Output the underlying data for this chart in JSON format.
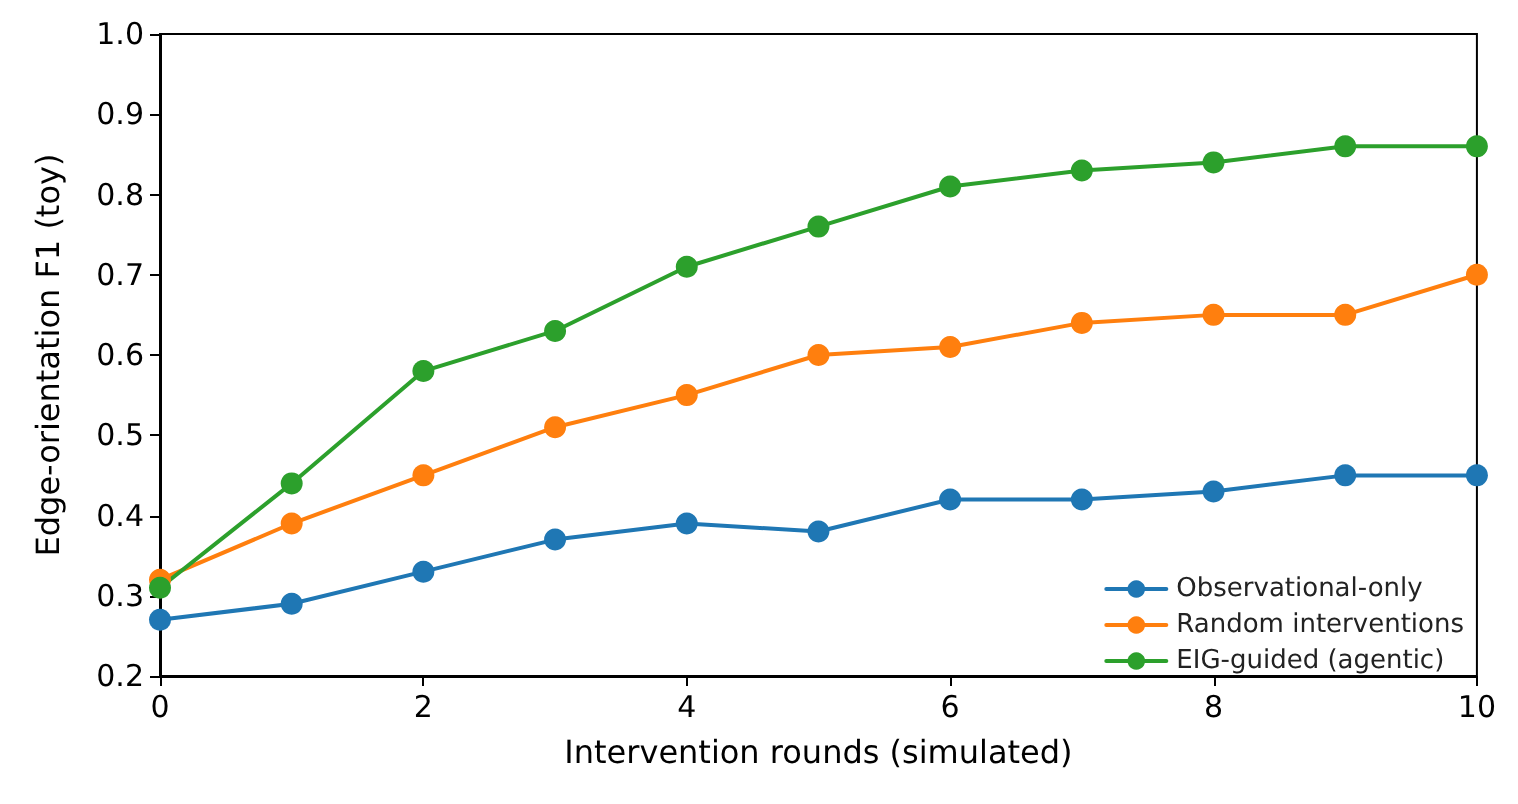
{
  "chart_data": {
    "type": "line",
    "xlabel": "Intervention rounds (simulated)",
    "ylabel": "Edge-orientation F1 (toy)",
    "x": [
      0,
      1,
      2,
      3,
      4,
      5,
      6,
      7,
      8,
      9,
      10
    ],
    "series": [
      {
        "name": "Observational-only",
        "color": "#1f77b4",
        "values": [
          0.27,
          0.29,
          0.33,
          0.37,
          0.39,
          0.38,
          0.42,
          0.42,
          0.43,
          0.45,
          0.45
        ]
      },
      {
        "name": "Random interventions",
        "color": "#ff7f0e",
        "values": [
          0.32,
          0.39,
          0.45,
          0.51,
          0.55,
          0.6,
          0.61,
          0.64,
          0.65,
          0.65,
          0.7
        ]
      },
      {
        "name": "EIG-guided (agentic)",
        "color": "#2ca02c",
        "values": [
          0.31,
          0.44,
          0.58,
          0.63,
          0.71,
          0.76,
          0.81,
          0.83,
          0.84,
          0.86,
          0.86
        ]
      }
    ],
    "xlim": [
      0,
      10
    ],
    "xticks": [
      0,
      2,
      4,
      6,
      8,
      10
    ],
    "ylim": [
      0.2,
      1.0
    ],
    "yticks": [
      0.2,
      0.3,
      0.4,
      0.5,
      0.6,
      0.7,
      0.8,
      0.9,
      {
        "value": 1,
        "label": "1.0"
      }
    ],
    "grid": false,
    "legend": "bottom right",
    "marker": "circle",
    "line_style": "solid"
  }
}
